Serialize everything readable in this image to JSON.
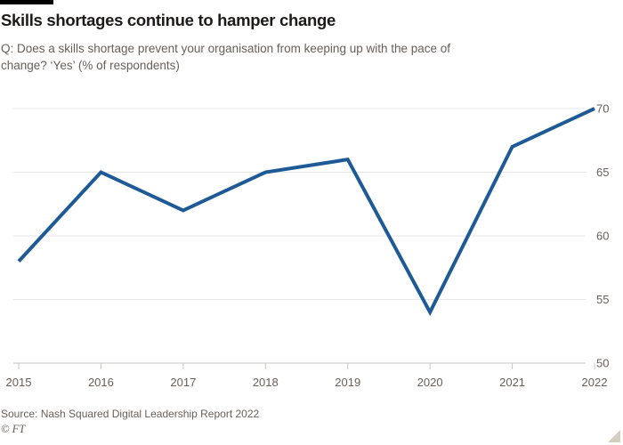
{
  "header": {
    "title": "Skills shortages continue to hamper change",
    "subtitle": "Q: Does a skills shortage prevent your organisation from keeping up with the pace of change? ‘Yes’ (% of respondents)"
  },
  "footer": {
    "source": "Source: Nash Squared Digital Leadership Report 2022",
    "credit": "© FT"
  },
  "icons": {
    "resize_handle": "corner-triangle"
  },
  "colors": {
    "line": "#1e5a96",
    "grid": "#e7e6e4",
    "axis": "#c9c6c1",
    "text_muted": "#66605c",
    "title_text": "#1d1b1a",
    "accent_bar": "#000000",
    "resize_handle": "#d5cdc2",
    "background": "#ffffff"
  },
  "chart_data": {
    "type": "line",
    "categories": [
      "2015",
      "2016",
      "2017",
      "2018",
      "2019",
      "2020",
      "2021",
      "2022"
    ],
    "series": [
      {
        "name": "Yes (% of respondents)",
        "values": [
          58,
          65,
          62,
          65,
          66,
          54,
          67,
          70
        ]
      }
    ],
    "title": "Skills shortages continue to hamper change",
    "xlabel": "",
    "ylabel": "",
    "ylim": [
      50,
      70
    ],
    "yticks": [
      50,
      55,
      60,
      65,
      70
    ],
    "grid": "horizontal",
    "legend": "none",
    "y_axis_position": "right"
  }
}
